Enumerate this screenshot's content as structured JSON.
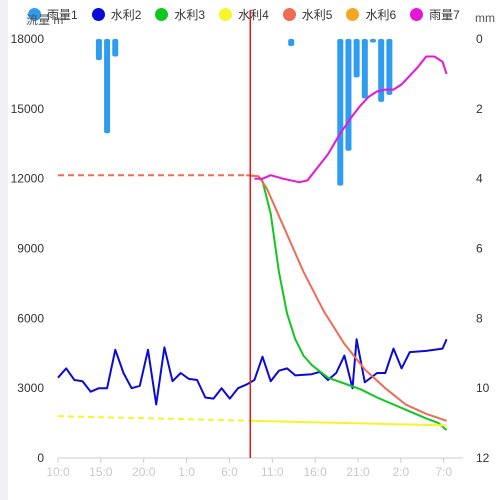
{
  "chart_data": {
    "type": "line",
    "left_axis": {
      "label": "流量 m",
      "ticks": [
        0,
        3000,
        6000,
        9000,
        12000,
        15000,
        18000
      ],
      "ylim": [
        0,
        18000
      ]
    },
    "right_axis": {
      "label": "mm",
      "ticks": [
        0,
        2,
        4,
        6,
        8,
        10,
        12
      ],
      "ylim": [
        0,
        12
      ],
      "inverted": true
    },
    "x_ticks": [
      "10:0",
      "15:0",
      "20:0",
      "1:0",
      "6:0",
      "11:0",
      "16:0",
      "21:0",
      "2:0",
      "7:0"
    ],
    "x_range": [
      0,
      99
    ],
    "marker_line_x": 47,
    "legend": [
      {
        "name": "雨量1",
        "color": "#2e9cf0"
      },
      {
        "name": "水利2",
        "color": "#0b0bd8"
      },
      {
        "name": "水利3",
        "color": "#10c81d"
      },
      {
        "name": "水利4",
        "color": "#f5f52a"
      },
      {
        "name": "水利5",
        "color": "#ef6b55"
      },
      {
        "name": "水利6",
        "color": "#f5a623"
      },
      {
        "name": "雨量7",
        "color": "#e616d8"
      }
    ],
    "rain_bars": [
      {
        "x": 10,
        "value": 0.6
      },
      {
        "x": 12,
        "value": 2.7
      },
      {
        "x": 14,
        "value": 0.5
      },
      {
        "x": 57,
        "value": 0.2
      },
      {
        "x": 69,
        "value": 4.2
      },
      {
        "x": 71,
        "value": 3.2
      },
      {
        "x": 73,
        "value": 1.1
      },
      {
        "x": 75,
        "value": 1.7
      },
      {
        "x": 77,
        "value": 0.1
      },
      {
        "x": 79,
        "value": 1.8
      },
      {
        "x": 81,
        "value": 1.6
      }
    ],
    "series": [
      {
        "name": "水利2",
        "axis": "left",
        "color": "#0b0bd8",
        "style": "solid",
        "points": [
          [
            0,
            3450
          ],
          [
            2,
            3850
          ],
          [
            4,
            3350
          ],
          [
            6,
            3300
          ],
          [
            8,
            2850
          ],
          [
            10,
            3000
          ],
          [
            12,
            3000
          ],
          [
            14,
            4650
          ],
          [
            16,
            3650
          ],
          [
            18,
            3000
          ],
          [
            20,
            3100
          ],
          [
            22,
            4650
          ],
          [
            24,
            2300
          ],
          [
            26,
            4750
          ],
          [
            28,
            3300
          ],
          [
            30,
            3650
          ],
          [
            32,
            3400
          ],
          [
            34,
            3350
          ],
          [
            36,
            2600
          ],
          [
            38,
            2550
          ],
          [
            40,
            3000
          ],
          [
            42,
            2550
          ],
          [
            44,
            3000
          ],
          [
            46,
            3150
          ],
          [
            48,
            3350
          ],
          [
            50,
            4350
          ],
          [
            52,
            3300
          ],
          [
            54,
            3750
          ],
          [
            56,
            3850
          ],
          [
            58,
            3550
          ],
          [
            62,
            3600
          ],
          [
            64,
            3700
          ],
          [
            66,
            3350
          ],
          [
            68,
            3650
          ],
          [
            70,
            4400
          ],
          [
            72,
            3000
          ],
          [
            73,
            5100
          ],
          [
            75,
            3250
          ],
          [
            78,
            3650
          ],
          [
            80,
            3650
          ],
          [
            82,
            4700
          ],
          [
            84,
            3850
          ],
          [
            86,
            4550
          ],
          [
            90,
            4600
          ],
          [
            92,
            4650
          ],
          [
            94,
            4700
          ],
          [
            95,
            5100
          ]
        ]
      },
      {
        "name": "水利3",
        "axis": "left",
        "color": "#10c81d",
        "style": "solid",
        "points": [
          [
            49,
            12100
          ],
          [
            50,
            11900
          ],
          [
            52,
            10500
          ],
          [
            54,
            8000
          ],
          [
            56,
            6200
          ],
          [
            58,
            5100
          ],
          [
            60,
            4400
          ],
          [
            62,
            4000
          ],
          [
            66,
            3450
          ],
          [
            70,
            3200
          ],
          [
            74,
            2950
          ],
          [
            78,
            2600
          ],
          [
            82,
            2300
          ],
          [
            86,
            2000
          ],
          [
            90,
            1700
          ],
          [
            93,
            1500
          ],
          [
            95,
            1200
          ]
        ]
      },
      {
        "name": "水利4",
        "axis": "left",
        "color": "#f5f52a",
        "style": "dashed_then_solid",
        "points": [
          [
            0,
            1800
          ],
          [
            47,
            1600
          ],
          [
            95,
            1400
          ]
        ]
      },
      {
        "name": "水利5",
        "axis": "left",
        "color": "#ef6b55",
        "style": "dashed_then_solid",
        "points": [
          [
            0,
            12150
          ],
          [
            46,
            12150
          ],
          [
            49,
            12100
          ],
          [
            51,
            11600
          ],
          [
            55,
            10000
          ],
          [
            60,
            8000
          ],
          [
            65,
            6300
          ],
          [
            70,
            4900
          ],
          [
            75,
            3800
          ],
          [
            80,
            3000
          ],
          [
            85,
            2300
          ],
          [
            90,
            1900
          ],
          [
            95,
            1600
          ]
        ]
      },
      {
        "name": "雨量7",
        "axis": "right",
        "color": "#e616d8",
        "style": "solid",
        "points": [
          [
            48,
            4.0
          ],
          [
            50,
            4.0
          ],
          [
            52,
            3.9
          ],
          [
            55,
            4.0
          ],
          [
            59,
            4.1
          ],
          [
            61,
            4.05
          ],
          [
            63,
            3.75
          ],
          [
            66,
            3.3
          ],
          [
            69,
            2.7
          ],
          [
            72,
            2.2
          ],
          [
            74,
            1.9
          ],
          [
            76,
            1.65
          ],
          [
            78,
            1.5
          ],
          [
            80,
            1.45
          ],
          [
            82,
            1.45
          ],
          [
            84,
            1.3
          ],
          [
            86,
            1.05
          ],
          [
            88,
            0.8
          ],
          [
            90,
            0.5
          ],
          [
            92,
            0.5
          ],
          [
            94,
            0.65
          ],
          [
            95,
            1.0
          ]
        ]
      }
    ]
  }
}
